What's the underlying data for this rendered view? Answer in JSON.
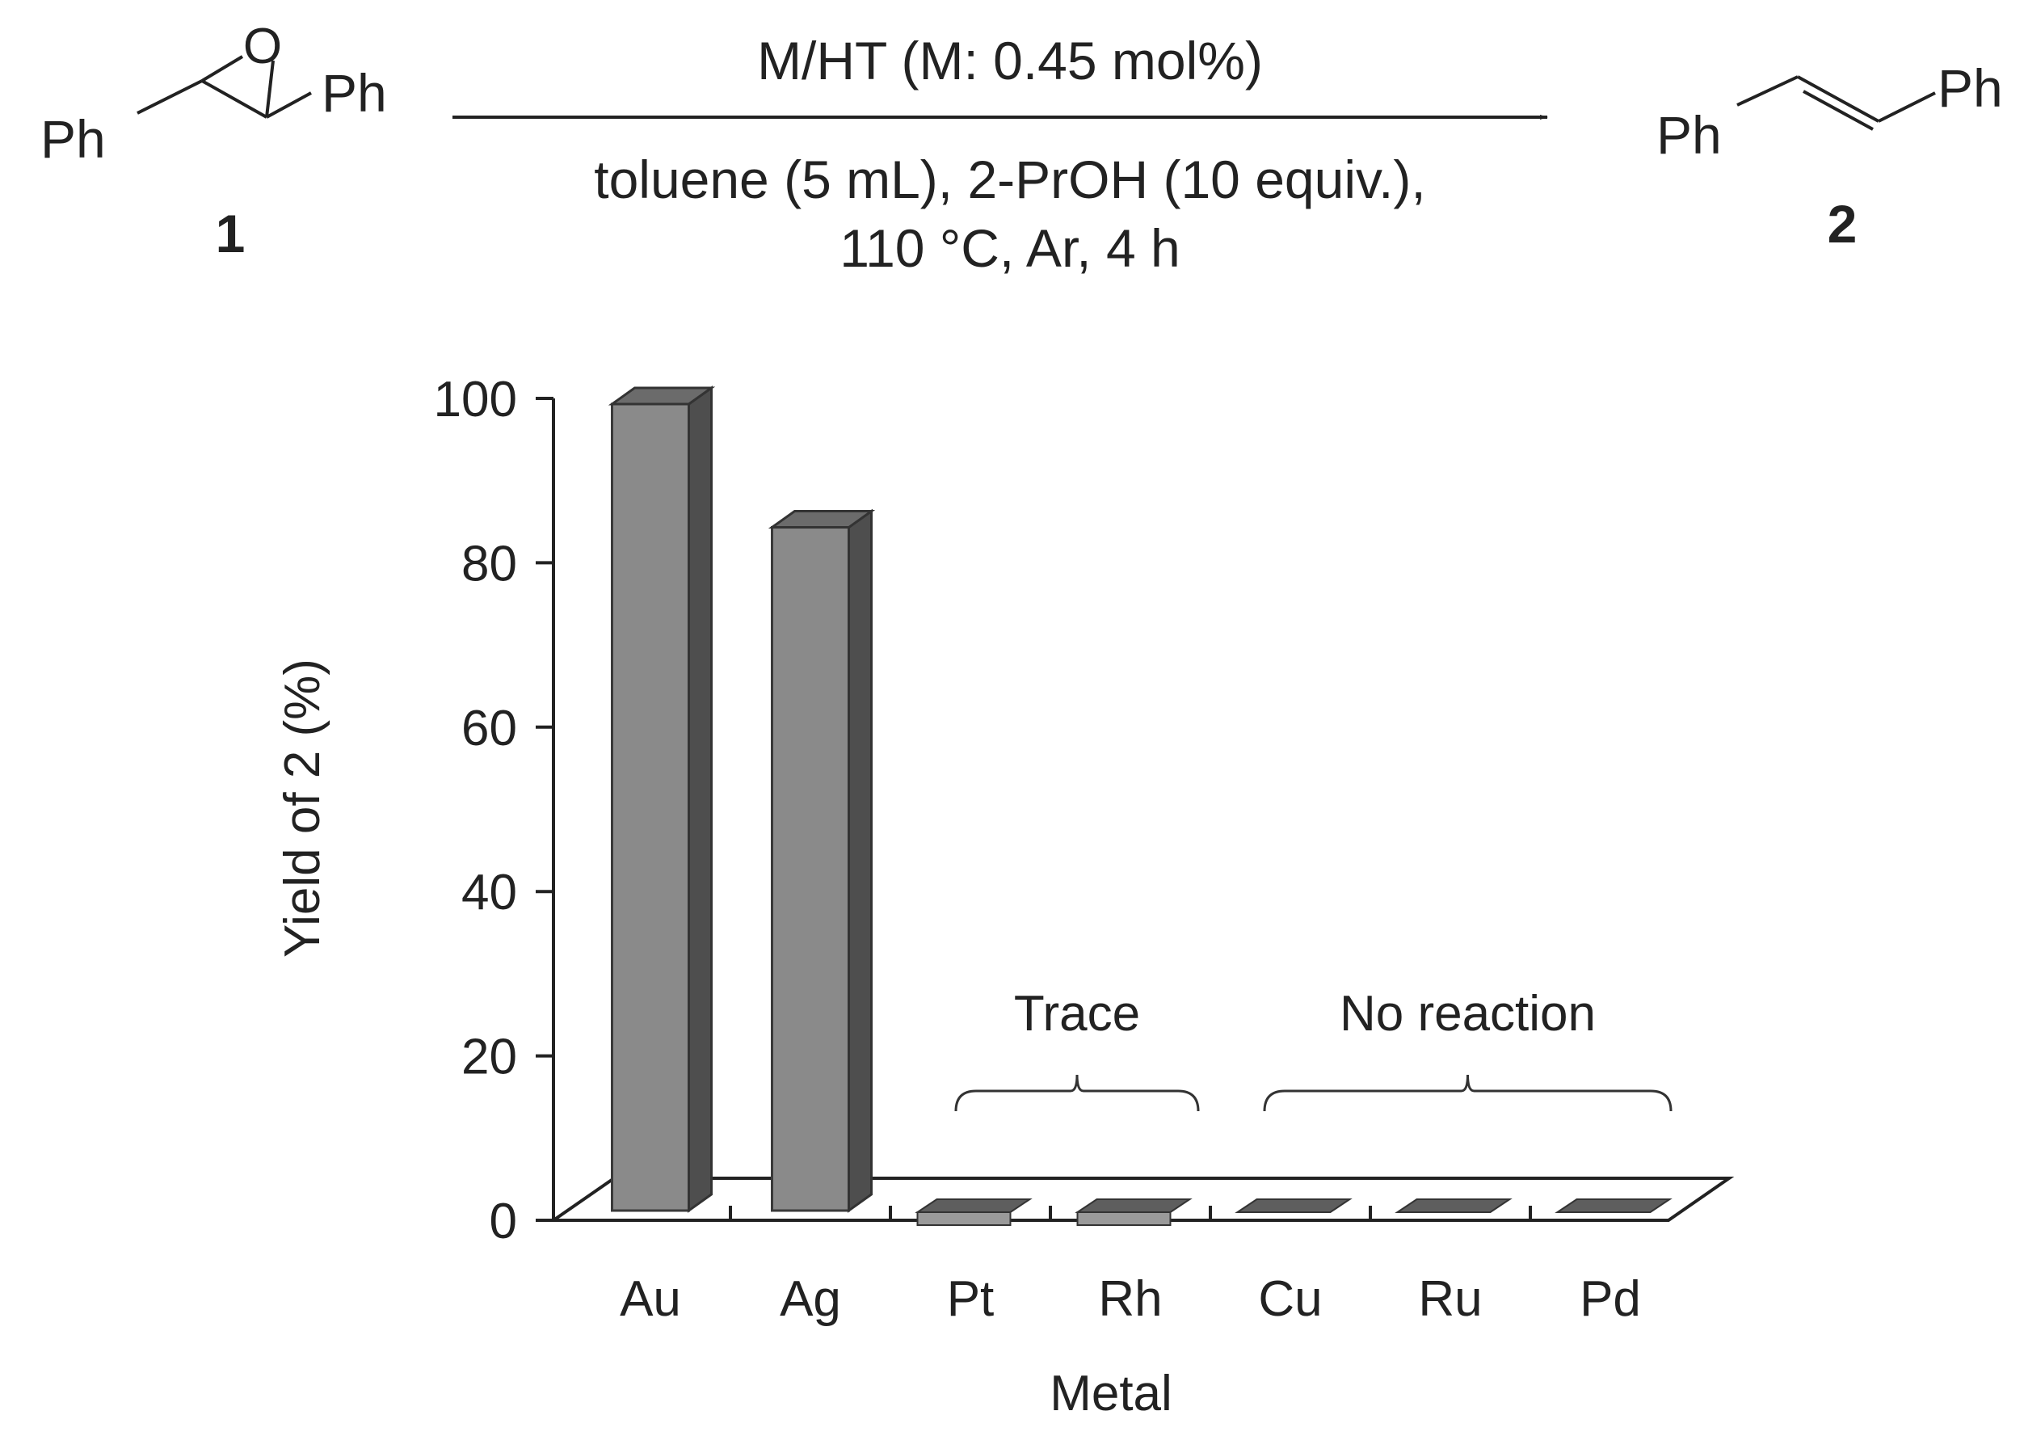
{
  "scheme": {
    "reactant": {
      "label": "1",
      "substituent_left": "Ph",
      "substituent_right": "Ph",
      "heteroatom": "O"
    },
    "product": {
      "label": "2",
      "substituent_left": "Ph",
      "substituent_right": "Ph"
    },
    "conditions_above": "M/HT (M: 0.45 mol%)",
    "conditions_below_line1": "toluene (5 mL), 2-PrOH (10 equiv.),",
    "conditions_below_line2": "110 °C, Ar, 4 h"
  },
  "chart_data": {
    "type": "bar",
    "title": "",
    "xlabel": "Metal",
    "ylabel": "Yield of 2 (%)",
    "ylim": [
      0,
      100
    ],
    "yticks": [
      "0",
      "20",
      "40",
      "60",
      "80",
      "100"
    ],
    "categories": [
      "Au",
      "Ag",
      "Pt",
      "Rh",
      "Cu",
      "Ru",
      "Pd"
    ],
    "values": [
      100,
      85,
      1,
      1,
      0,
      0,
      0
    ],
    "grid": false,
    "annotations": [
      {
        "text": "Trace",
        "categories": [
          "Pt",
          "Rh"
        ]
      },
      {
        "text": "No reaction",
        "categories": [
          "Cu",
          "Ru",
          "Pd"
        ]
      }
    ],
    "colors": {
      "bar_front": "#8a8a8a",
      "bar_side": "#4e4e4e",
      "bar_top": "#6b6b6b",
      "flat_bar": "#5e5e5e"
    }
  }
}
